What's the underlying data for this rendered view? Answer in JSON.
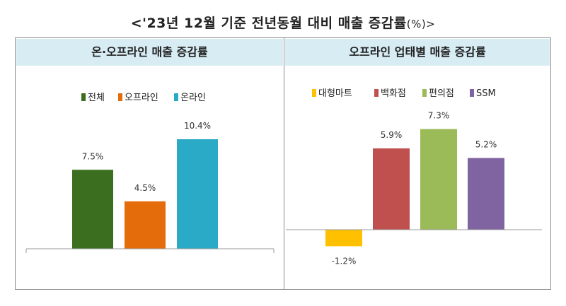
{
  "title": "<'23년 12월 기준 전년동월 대비 매출 증감률",
  "title_unit": "(%)>",
  "chart_data": [
    {
      "type": "bar",
      "title": "온·오프라인 매출 증감률",
      "categories": [
        "전체",
        "오프라인",
        "온라인"
      ],
      "values": [
        7.5,
        4.5,
        10.4
      ],
      "value_labels": [
        "7.5%",
        "4.5%",
        "10.4%"
      ],
      "colors": [
        "#3b6e1e",
        "#e46c0a",
        "#2aaac6"
      ],
      "legend_position": "top",
      "ylim": [
        0,
        12
      ],
      "xlabel": "",
      "ylabel": ""
    },
    {
      "type": "bar",
      "title": "오프라인 업태별 매출 증감률",
      "categories": [
        "대형마트",
        "백화점",
        "편의점",
        "SSM"
      ],
      "values": [
        -1.2,
        5.9,
        7.3,
        5.2
      ],
      "value_labels": [
        "-1.2%",
        "5.9%",
        "7.3%",
        "5.2%"
      ],
      "colors": [
        "#ffc000",
        "#c0504d",
        "#9bbb59",
        "#8064a2"
      ],
      "legend_position": "top",
      "ylim": [
        -2,
        9
      ],
      "xlabel": "",
      "ylabel": ""
    }
  ]
}
